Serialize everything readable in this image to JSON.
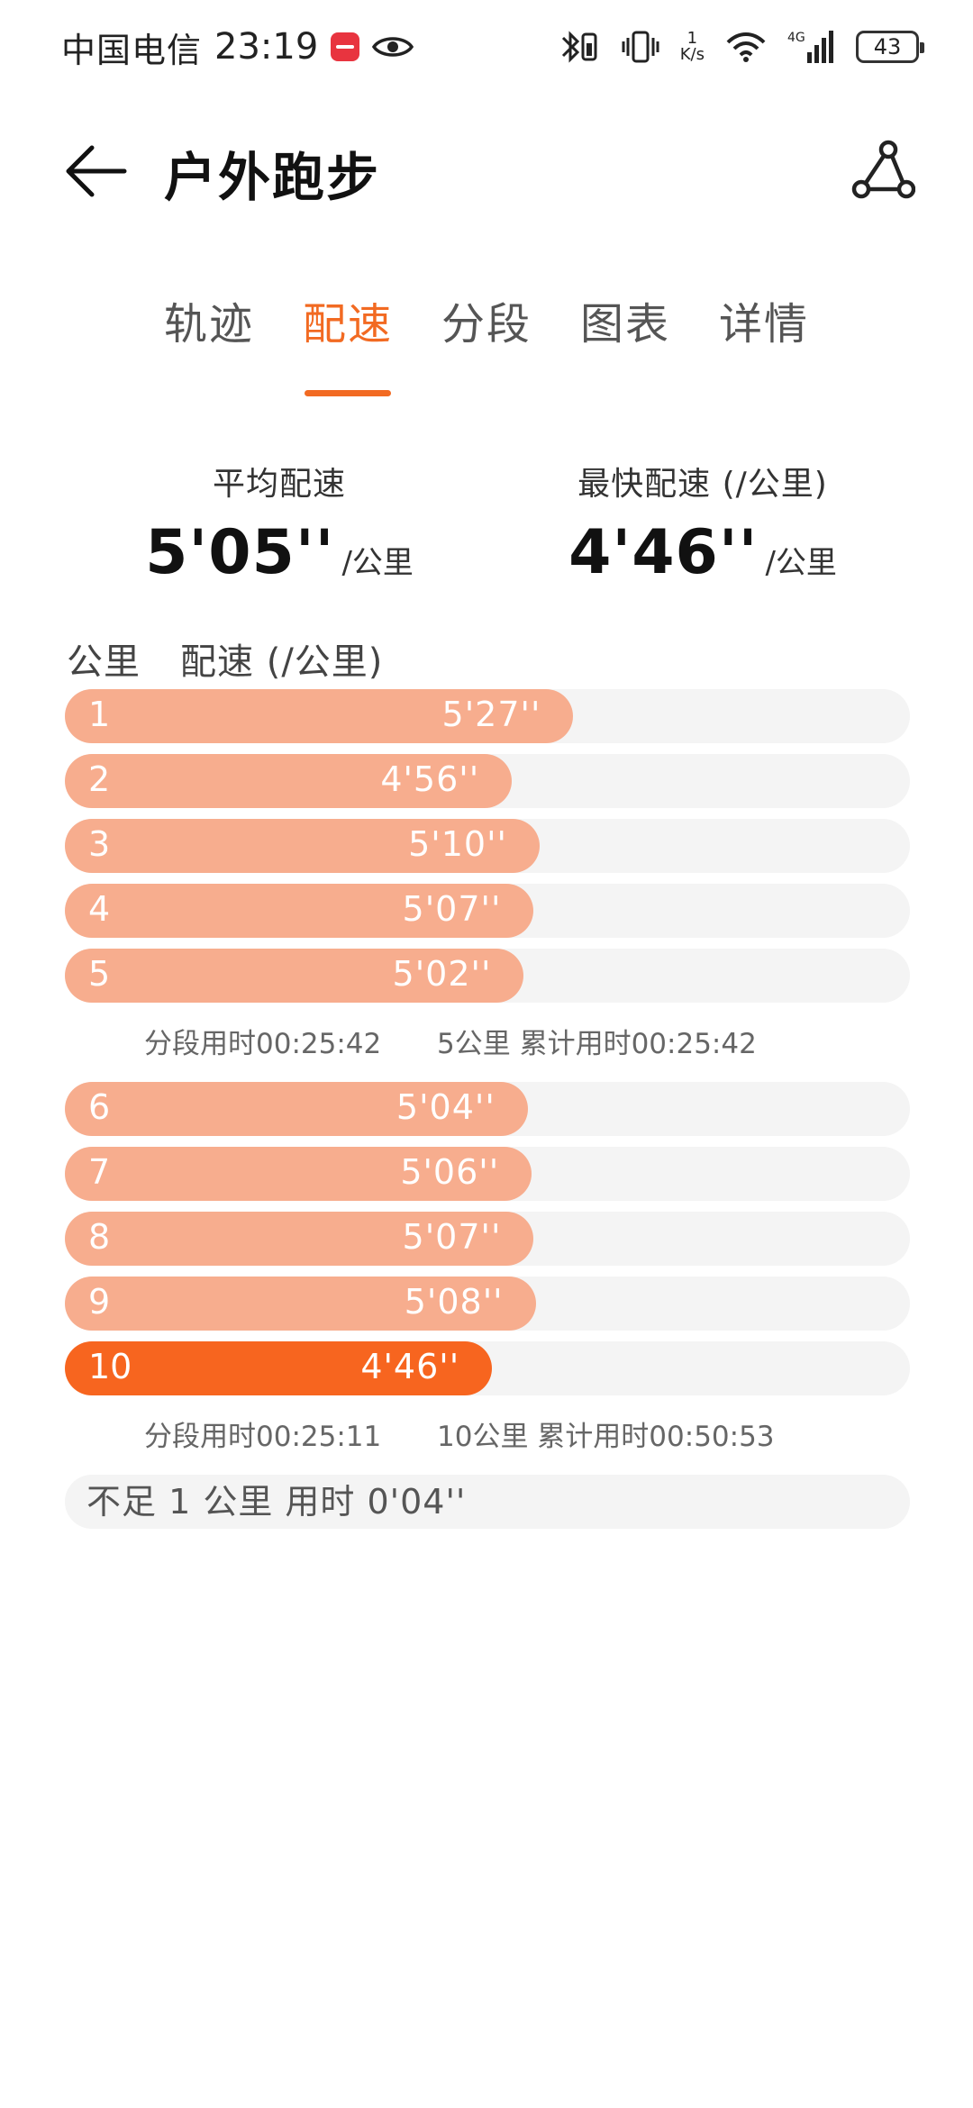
{
  "status_bar": {
    "carrier": "中国电信",
    "time": "23:19",
    "speed_value": "1",
    "speed_unit": "K/s",
    "network": "4G",
    "battery": "43"
  },
  "header": {
    "title": "户外跑步"
  },
  "tabs": [
    {
      "label": "轨迹",
      "active": false
    },
    {
      "label": "配速",
      "active": true
    },
    {
      "label": "分段",
      "active": false
    },
    {
      "label": "图表",
      "active": false
    },
    {
      "label": "详情",
      "active": false
    }
  ],
  "summary": {
    "avg_label": "平均配速",
    "avg_value": "5'05''",
    "avg_unit": "/公里",
    "fast_label": "最快配速 (/公里)",
    "fast_value": "4'46''",
    "fast_unit": "/公里"
  },
  "table": {
    "col_km": "公里",
    "col_pace": "配速 (/公里)"
  },
  "chart_data": {
    "type": "bar",
    "categories": [
      "1",
      "2",
      "3",
      "4",
      "5",
      "6",
      "7",
      "8",
      "9",
      "10"
    ],
    "values": [
      327,
      296,
      310,
      307,
      302,
      304,
      306,
      307,
      308,
      286
    ],
    "labels": [
      "5'27''",
      "4'56''",
      "5'10''",
      "5'07''",
      "5'02''",
      "5'04''",
      "5'06''",
      "5'07''",
      "5'08''",
      "4'46''"
    ],
    "fastest_index": 9
  },
  "segments": [
    {
      "split": "分段用时00:25:42",
      "cumulative": "5公里 累计用时00:25:42"
    },
    {
      "split": "分段用时00:25:11",
      "cumulative": "10公里 累计用时00:50:53"
    }
  ],
  "remainder": "不足 1 公里 用时 0'04''",
  "colors": {
    "accent": "#f26a22",
    "bar": "#f7ad8e",
    "bar_fastest": "#f7651f",
    "track": "#f4f4f4"
  }
}
